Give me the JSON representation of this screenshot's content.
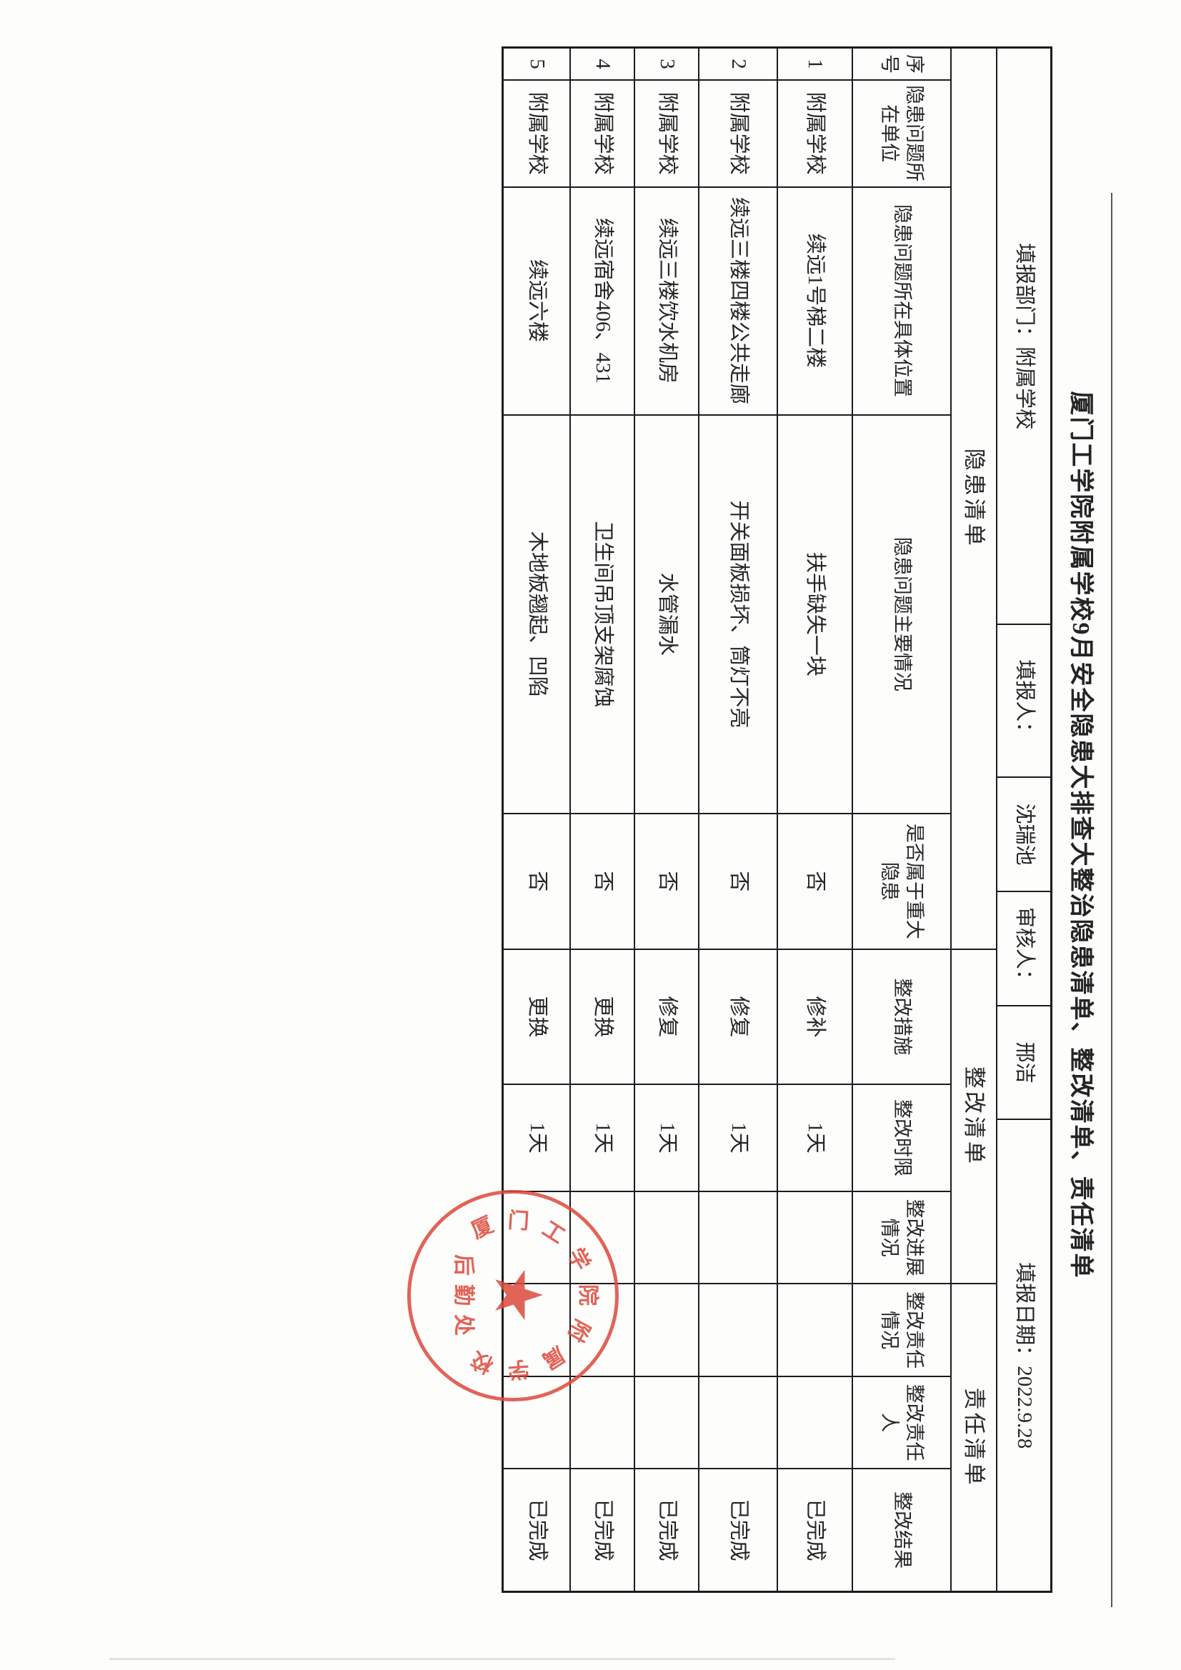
{
  "title": "厦门工学院附属学校9月安全隐患大排查大整治隐患清单、整改清单、责任清单",
  "info_row": {
    "dept": "填报部门：附属学校",
    "filler_label": "填报人：",
    "filler_name": "沈瑞池",
    "reviewer_label": "审核人：",
    "reviewer_name": "邢洁",
    "date": "填报日期：2022.9.28"
  },
  "sections": [
    "隐患清单",
    "整改清单",
    "责任清单"
  ],
  "columns": [
    "序号",
    "隐患问题所在单位",
    "隐患问题所在具体位置",
    "隐患问题主要情况",
    "是否属于重大隐患",
    "整改措施",
    "整改时限",
    "整改进展情况",
    "整改责任情况",
    "整改责任人",
    "整改结果"
  ],
  "rows": [
    [
      "1",
      "附属学校",
      "续远1号梯二楼",
      "扶手缺失一块",
      "否",
      "修补",
      "1天",
      "",
      "",
      "",
      "已完成"
    ],
    [
      "2",
      "附属学校",
      "续远三楼四楼公共走廊",
      "开关面板损坏、筒灯不亮",
      "否",
      "修复",
      "1天",
      "",
      "",
      "",
      "已完成"
    ],
    [
      "3",
      "附属学校",
      "续远三楼饮水机房",
      "水管漏水",
      "否",
      "修复",
      "1天",
      "",
      "",
      "",
      "已完成"
    ],
    [
      "4",
      "附属学校",
      "续远宿舍406、431",
      "卫生间吊顶支架腐蚀",
      "否",
      "更换",
      "1天",
      "",
      "",
      "",
      "已完成"
    ],
    [
      "5",
      "附属学校",
      "续远六楼",
      "木地板翘起、凹陷",
      "否",
      "更换",
      "1天",
      "",
      "",
      "",
      "已完成"
    ]
  ],
  "stamp": {
    "ring_text": "厦门工学院附属学校",
    "inner_text": "后勤处",
    "star": "★",
    "color": "#dd4a3c"
  },
  "colors": {
    "ink": "#262626",
    "grid_line": "#1c1c1c",
    "stamp_red": "#dd4a3c",
    "paper": "#fdfdfc"
  }
}
